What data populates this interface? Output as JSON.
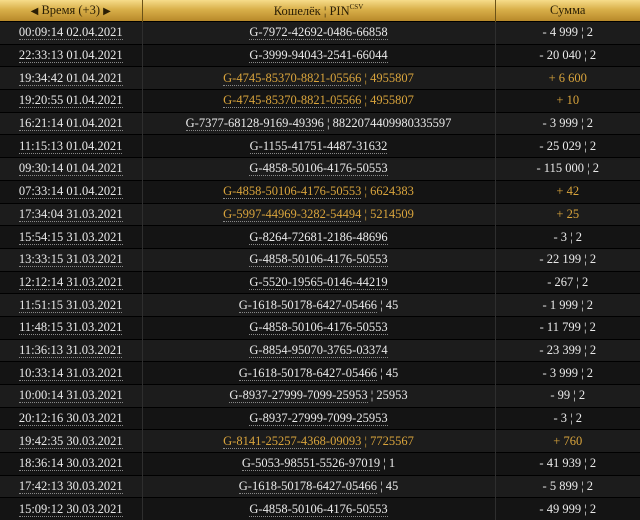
{
  "header": {
    "time_label": "Время (+3)",
    "prev_arrow": "◀",
    "next_arrow": "▶",
    "wallet_label": "Кошелёк ¦ PIN",
    "csv_label": "CSV",
    "sum_label": "Сумма"
  },
  "colors": {
    "accent_gold": "#d9a43c",
    "header_gold": "#d9b04a"
  },
  "rows": [
    {
      "time": "00:09:14 02.04.2021",
      "wallet": "G-7972-42692-0486-66858",
      "pin": "",
      "sum": "- 4 999 ¦ 2",
      "incoming": false
    },
    {
      "time": "22:33:13 01.04.2021",
      "wallet": "G-3999-94043-2541-66044",
      "pin": "",
      "sum": "- 20 040 ¦ 2",
      "incoming": false
    },
    {
      "time": "19:34:42 01.04.2021",
      "wallet": "G-4745-85370-8821-05566",
      "pin": "4955807",
      "sum": "+ 6 600",
      "incoming": true
    },
    {
      "time": "19:20:55 01.04.2021",
      "wallet": "G-4745-85370-8821-05566",
      "pin": "4955807",
      "sum": "+ 10",
      "incoming": true
    },
    {
      "time": "16:21:14 01.04.2021",
      "wallet": "G-7377-68128-9169-49396",
      "pin": "8822074409980335597",
      "sum": "- 3 999 ¦ 2",
      "incoming": false
    },
    {
      "time": "11:15:13 01.04.2021",
      "wallet": "G-1155-41751-4487-31632",
      "pin": "",
      "sum": "- 25 029 ¦ 2",
      "incoming": false
    },
    {
      "time": "09:30:14 01.04.2021",
      "wallet": "G-4858-50106-4176-50553",
      "pin": "",
      "sum": "- 115 000 ¦ 2",
      "incoming": false
    },
    {
      "time": "07:33:14 01.04.2021",
      "wallet": "G-4858-50106-4176-50553",
      "pin": "6624383",
      "sum": "+ 42",
      "incoming": true
    },
    {
      "time": "17:34:04 31.03.2021",
      "wallet": "G-5997-44969-3282-54494",
      "pin": "5214509",
      "sum": "+ 25",
      "incoming": true
    },
    {
      "time": "15:54:15 31.03.2021",
      "wallet": "G-8264-72681-2186-48696",
      "pin": "",
      "sum": "- 3 ¦ 2",
      "incoming": false
    },
    {
      "time": "13:33:15 31.03.2021",
      "wallet": "G-4858-50106-4176-50553",
      "pin": "",
      "sum": "- 22 199 ¦ 2",
      "incoming": false
    },
    {
      "time": "12:12:14 31.03.2021",
      "wallet": "G-5520-19565-0146-44219",
      "pin": "",
      "sum": "- 267 ¦ 2",
      "incoming": false
    },
    {
      "time": "11:51:15 31.03.2021",
      "wallet": "G-1618-50178-6427-05466",
      "pin": "45",
      "sum": "- 1 999 ¦ 2",
      "incoming": false
    },
    {
      "time": "11:48:15 31.03.2021",
      "wallet": "G-4858-50106-4176-50553",
      "pin": "",
      "sum": "- 11 799 ¦ 2",
      "incoming": false
    },
    {
      "time": "11:36:13 31.03.2021",
      "wallet": "G-8854-95070-3765-03374",
      "pin": "",
      "sum": "- 23 399 ¦ 2",
      "incoming": false
    },
    {
      "time": "10:33:14 31.03.2021",
      "wallet": "G-1618-50178-6427-05466",
      "pin": "45",
      "sum": "- 3 999 ¦ 2",
      "incoming": false
    },
    {
      "time": "10:00:14 31.03.2021",
      "wallet": "G-8937-27999-7099-25953",
      "pin": "25953",
      "sum": "- 99 ¦ 2",
      "incoming": false
    },
    {
      "time": "20:12:16 30.03.2021",
      "wallet": "G-8937-27999-7099-25953",
      "pin": "",
      "sum": "- 3 ¦ 2",
      "incoming": false
    },
    {
      "time": "19:42:35 30.03.2021",
      "wallet": "G-8141-25257-4368-09093",
      "pin": "7725567",
      "sum": "+ 760",
      "incoming": true
    },
    {
      "time": "18:36:14 30.03.2021",
      "wallet": "G-5053-98551-5526-97019",
      "pin": "1",
      "sum": "- 41 939 ¦ 2",
      "incoming": false
    },
    {
      "time": "17:42:13 30.03.2021",
      "wallet": "G-1618-50178-6427-05466",
      "pin": "45",
      "sum": "- 5 899 ¦ 2",
      "incoming": false
    },
    {
      "time": "15:09:12 30.03.2021",
      "wallet": "G-4858-50106-4176-50553",
      "pin": "",
      "sum": "- 49 999 ¦ 2",
      "incoming": false
    }
  ]
}
